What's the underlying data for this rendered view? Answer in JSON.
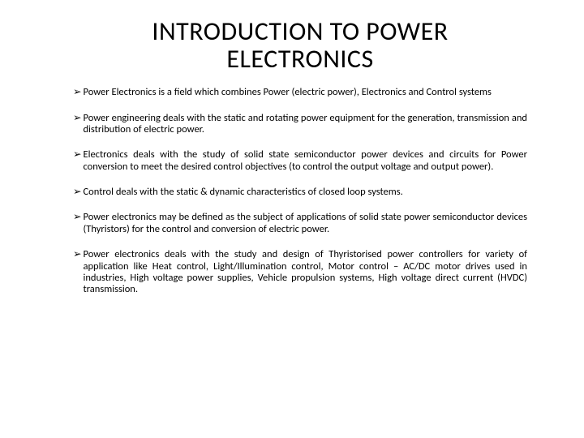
{
  "title_line1": "INTRODUCTION TO POWER",
  "title_line2": "ELECTRONICS",
  "title_fontsize": "32px",
  "bullet_fontsize": "12.5px",
  "bullet_marker": "➢",
  "text_color": "#000000",
  "background_color": "#ffffff",
  "bullets": [
    "Power Electronics is a field which combines Power (electric power), Electronics and Control systems",
    "Power engineering deals with the static and rotating power equipment for the generation, transmission and distribution of electric power.",
    "Electronics deals with the study of solid state semiconductor power devices and circuits for Power conversion to meet the desired control objectives (to control the output voltage and output power).",
    "Control deals with the static & dynamic characteristics of closed loop systems.",
    "Power electronics may be defined as the subject of applications of solid state power semiconductor devices (Thyristors) for the control and conversion of electric power.",
    "Power electronics deals with the study and design of Thyristorised power controllers for variety of application like Heat control, Light/Illumination control, Motor control – AC/DC motor drives used in industries, High voltage power supplies, Vehicle propulsion systems, High voltage direct current (HVDC) transmission."
  ]
}
